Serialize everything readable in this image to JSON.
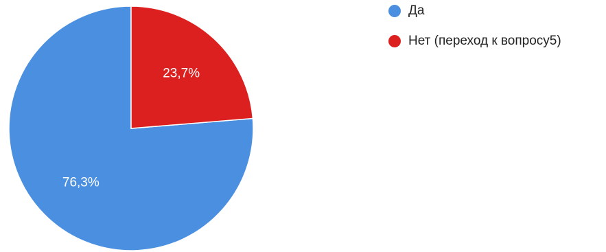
{
  "chart_data": {
    "type": "pie",
    "series": [
      {
        "name": "Да",
        "value": 76.3,
        "label": "76,3%",
        "color": "#4a8fe0"
      },
      {
        "name": "Нет (переход к вопросу5)",
        "value": 23.7,
        "label": "23,7%",
        "color": "#dc2020"
      }
    ],
    "legend_position": "top-right",
    "start_angle": "12 o'clock",
    "direction": "clockwise"
  }
}
